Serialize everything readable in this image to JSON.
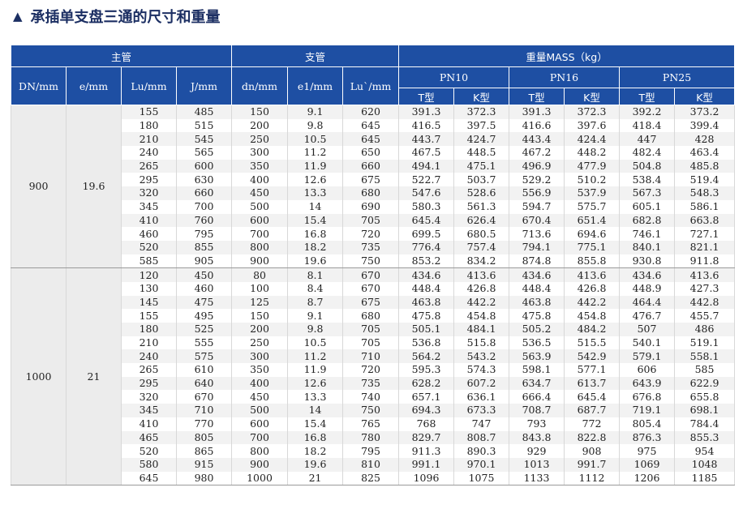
{
  "title": "承插单支盘三通的尺寸和重量",
  "title_icon": "triangle-up-icon",
  "header": {
    "main_pipe": "主管",
    "branch_pipe": "支管",
    "mass": "重量MASS（kg）",
    "cols": [
      "DN/mm",
      "e/mm",
      "Lu/mm",
      "J/mm",
      "dn/mm",
      "e1/mm",
      "Lu`/mm"
    ],
    "pn": [
      "PN10",
      "PN16",
      "PN25"
    ],
    "t_type": "T型",
    "k_type": "K型"
  },
  "groups": [
    {
      "dn": "900",
      "e": "19.6",
      "rows": [
        [
          "155",
          "485",
          "150",
          "9.1",
          "620",
          "391.3",
          "372.3",
          "391.3",
          "372.3",
          "392.2",
          "373.2"
        ],
        [
          "180",
          "515",
          "200",
          "9.8",
          "645",
          "416.5",
          "397.5",
          "416.6",
          "397.6",
          "418.4",
          "399.4"
        ],
        [
          "210",
          "545",
          "250",
          "10.5",
          "645",
          "443.7",
          "424.7",
          "443.4",
          "424.4",
          "447",
          "428"
        ],
        [
          "240",
          "565",
          "300",
          "11.2",
          "650",
          "467.5",
          "448.5",
          "467.2",
          "448.2",
          "482.4",
          "463.4"
        ],
        [
          "265",
          "600",
          "350",
          "11.9",
          "660",
          "494.1",
          "475.1",
          "496.9",
          "477.9",
          "504.8",
          "485.8"
        ],
        [
          "295",
          "630",
          "400",
          "12.6",
          "675",
          "522.7",
          "503.7",
          "529.2",
          "510.2",
          "538.4",
          "519.4"
        ],
        [
          "320",
          "660",
          "450",
          "13.3",
          "680",
          "547.6",
          "528.6",
          "556.9",
          "537.9",
          "567.3",
          "548.3"
        ],
        [
          "345",
          "700",
          "500",
          "14",
          "690",
          "580.3",
          "561.3",
          "594.7",
          "575.7",
          "605.1",
          "586.1"
        ],
        [
          "410",
          "760",
          "600",
          "15.4",
          "705",
          "645.4",
          "626.4",
          "670.4",
          "651.4",
          "682.8",
          "663.8"
        ],
        [
          "460",
          "795",
          "700",
          "16.8",
          "720",
          "699.5",
          "680.5",
          "713.6",
          "694.6",
          "746.1",
          "727.1"
        ],
        [
          "520",
          "855",
          "800",
          "18.2",
          "735",
          "776.4",
          "757.4",
          "794.1",
          "775.1",
          "840.1",
          "821.1"
        ],
        [
          "585",
          "905",
          "900",
          "19.6",
          "750",
          "853.2",
          "834.2",
          "874.8",
          "855.8",
          "930.8",
          "911.8"
        ]
      ]
    },
    {
      "dn": "1000",
      "e": "21",
      "rows": [
        [
          "120",
          "450",
          "80",
          "8.1",
          "670",
          "434.6",
          "413.6",
          "434.6",
          "413.6",
          "434.6",
          "413.6"
        ],
        [
          "130",
          "460",
          "100",
          "8.4",
          "670",
          "448.4",
          "426.8",
          "448.4",
          "426.8",
          "448.9",
          "427.3"
        ],
        [
          "145",
          "475",
          "125",
          "8.7",
          "675",
          "463.8",
          "442.2",
          "463.8",
          "442.2",
          "464.4",
          "442.8"
        ],
        [
          "155",
          "495",
          "150",
          "9.1",
          "680",
          "475.8",
          "454.8",
          "475.8",
          "454.8",
          "476.7",
          "455.7"
        ],
        [
          "180",
          "525",
          "200",
          "9.8",
          "705",
          "505.1",
          "484.1",
          "505.2",
          "484.2",
          "507",
          "486"
        ],
        [
          "210",
          "555",
          "250",
          "10.5",
          "705",
          "536.8",
          "515.8",
          "536.5",
          "515.5",
          "540.1",
          "519.1"
        ],
        [
          "240",
          "575",
          "300",
          "11.2",
          "710",
          "564.2",
          "543.2",
          "563.9",
          "542.9",
          "579.1",
          "558.1"
        ],
        [
          "265",
          "610",
          "350",
          "11.9",
          "720",
          "595.3",
          "574.3",
          "598.1",
          "577.1",
          "606",
          "585"
        ],
        [
          "295",
          "640",
          "400",
          "12.6",
          "735",
          "628.2",
          "607.2",
          "634.7",
          "613.7",
          "643.9",
          "622.9"
        ],
        [
          "320",
          "670",
          "450",
          "13.3",
          "740",
          "657.1",
          "636.1",
          "666.4",
          "645.4",
          "676.8",
          "655.8"
        ],
        [
          "345",
          "710",
          "500",
          "14",
          "750",
          "694.3",
          "673.3",
          "708.7",
          "687.7",
          "719.1",
          "698.1"
        ],
        [
          "410",
          "770",
          "600",
          "15.4",
          "765",
          "768",
          "747",
          "793",
          "772",
          "805.4",
          "784.4"
        ],
        [
          "465",
          "805",
          "700",
          "16.8",
          "780",
          "829.7",
          "808.7",
          "843.8",
          "822.8",
          "876.3",
          "855.3"
        ],
        [
          "520",
          "865",
          "800",
          "18.2",
          "795",
          "911.3",
          "890.3",
          "929",
          "908",
          "975",
          "954"
        ],
        [
          "580",
          "915",
          "900",
          "19.6",
          "810",
          "991.1",
          "970.1",
          "1013",
          "991.7",
          "1069",
          "1048"
        ],
        [
          "645",
          "980",
          "1000",
          "21",
          "825",
          "1096",
          "1075",
          "1133",
          "1112",
          "1206",
          "1185"
        ]
      ]
    }
  ]
}
